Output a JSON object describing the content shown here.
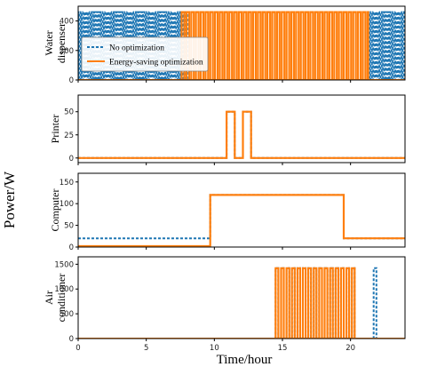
{
  "chart_data": {
    "type": "line",
    "common_ylabel": "Power/W",
    "xlabel": "Time/hour",
    "xlim": [
      0,
      24
    ],
    "xticks": [
      0,
      5,
      10,
      15,
      20
    ],
    "grid": false,
    "legend": {
      "location": "upper-left of first panel",
      "entries": [
        {
          "label": "No optimization",
          "style": "dashed",
          "color": "#1f77b4"
        },
        {
          "label": "Energy-saving optimization",
          "style": "solid",
          "color": "#ff7f0e"
        }
      ]
    },
    "colors": {
      "no_optimization": "#1f77b4",
      "energy_saving": "#ff7f0e"
    },
    "panels": [
      {
        "ylabel": [
          "Water",
          "dispenser"
        ],
        "ylim": [
          0,
          500
        ],
        "yticks": [
          0,
          200,
          400
        ],
        "series": [
          {
            "name": "No optimization",
            "pulse_trains": [
              {
                "start": 0,
                "end": 8.0,
                "period": 0.18,
                "duty": 0.5,
                "high": 460
              },
              {
                "start": 21.3,
                "end": 24,
                "period": 0.18,
                "duty": 0.5,
                "high": 460
              }
            ],
            "steps": [],
            "base": 0
          },
          {
            "name": "Energy-saving optimization",
            "pulse_trains": [
              {
                "start": 7.6,
                "end": 21.3,
                "period": 0.35,
                "duty": 0.55,
                "high": 460
              }
            ],
            "steps": [],
            "base": 0
          }
        ]
      },
      {
        "ylabel": [
          "Printer"
        ],
        "ylim": [
          -5,
          68
        ],
        "yticks": [
          0,
          25,
          50
        ],
        "series": [
          {
            "name": "No optimization",
            "pulse_trains": [],
            "steps": [
              [
                0,
                0
              ],
              [
                10.9,
                0
              ],
              [
                10.9,
                50
              ],
              [
                11.5,
                50
              ],
              [
                11.5,
                0
              ],
              [
                12.1,
                0
              ],
              [
                12.1,
                50
              ],
              [
                12.7,
                50
              ],
              [
                12.7,
                0
              ],
              [
                24,
                0
              ]
            ],
            "base": 0
          },
          {
            "name": "Energy-saving optimization",
            "pulse_trains": [],
            "steps": [
              [
                0,
                0
              ],
              [
                10.9,
                0
              ],
              [
                10.9,
                50
              ],
              [
                11.5,
                50
              ],
              [
                11.5,
                0
              ],
              [
                12.1,
                0
              ],
              [
                12.1,
                50
              ],
              [
                12.7,
                50
              ],
              [
                12.7,
                0
              ],
              [
                24,
                0
              ]
            ],
            "base": 0
          }
        ]
      },
      {
        "ylabel": [
          "Computer"
        ],
        "ylim": [
          0,
          170
        ],
        "yticks": [
          0,
          50,
          100,
          150
        ],
        "series": [
          {
            "name": "No optimization",
            "pulse_trains": [],
            "steps": [
              [
                0,
                20
              ],
              [
                9.7,
                20
              ],
              [
                9.7,
                120
              ],
              [
                19.5,
                120
              ],
              [
                19.5,
                20
              ],
              [
                24,
                20
              ]
            ],
            "base": 0
          },
          {
            "name": "Energy-saving optimization",
            "pulse_trains": [],
            "steps": [
              [
                0,
                2
              ],
              [
                9.7,
                2
              ],
              [
                9.7,
                120
              ],
              [
                19.5,
                120
              ],
              [
                19.5,
                20
              ],
              [
                24,
                20
              ]
            ],
            "base": 0
          }
        ]
      },
      {
        "ylabel": [
          "Air",
          "conditioner"
        ],
        "ylim": [
          0,
          1650
        ],
        "yticks": [
          0,
          500,
          1000,
          1500
        ],
        "series": [
          {
            "name": "No optimization",
            "pulse_trains": [
              {
                "start": 14.5,
                "end": 20.5,
                "period": 0.4,
                "duty": 0.5,
                "high": 1420
              },
              {
                "start": 21.7,
                "end": 22.1,
                "period": 0.4,
                "duty": 0.5,
                "high": 1420
              }
            ],
            "steps": [],
            "base": 0
          },
          {
            "name": "Energy-saving optimization",
            "pulse_trains": [
              {
                "start": 14.5,
                "end": 20.5,
                "period": 0.4,
                "duty": 0.5,
                "high": 1420
              }
            ],
            "steps": [],
            "base": 0
          }
        ]
      }
    ]
  }
}
